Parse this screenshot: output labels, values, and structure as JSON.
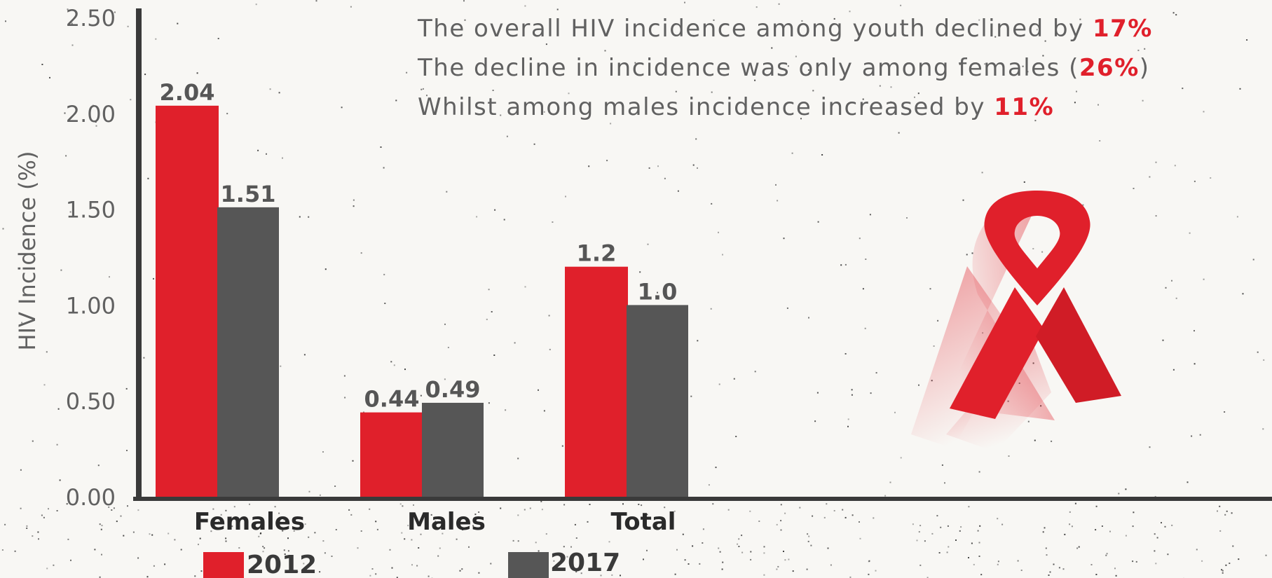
{
  "chart_data": {
    "type": "bar",
    "ylabel": "HIV Incidence (%)",
    "ylim": [
      0,
      2.5
    ],
    "yticks": [
      0.0,
      0.5,
      1.0,
      1.5,
      2.0,
      2.5
    ],
    "ytick_labels": [
      "0.00",
      "0.50",
      "1.00",
      "1.50",
      "2.00",
      "2.50"
    ],
    "categories": [
      "Females",
      "Males",
      "Total"
    ],
    "series": [
      {
        "name": "2012",
        "values": [
          2.04,
          0.44,
          1.2
        ],
        "labels": [
          "2.04",
          "0.44",
          "1.2"
        ],
        "color": "#e0202b"
      },
      {
        "name": "2017",
        "values": [
          1.51,
          0.49,
          1.0
        ],
        "labels": [
          "1.51",
          "0.49",
          "1.0"
        ],
        "color": "#565656"
      }
    ],
    "legend_position": "bottom",
    "grid": false,
    "annotations": [
      {
        "text": "The overall HIV incidence among youth declined by ",
        "highlight": "17%",
        "suffix": ""
      },
      {
        "text": "The decline in incidence was only among females (",
        "highlight": "26%",
        "suffix": ")"
      },
      {
        "text": "Whilst among males incidence increased by ",
        "highlight": "11%",
        "suffix": ""
      }
    ]
  },
  "colors": {
    "accent": "#e0202b",
    "dark": "#565656",
    "axis": "#3a3a3a",
    "background": "#f8f7f4",
    "text": "#616161"
  },
  "icons": {
    "ribbon": "awareness-ribbon-icon"
  }
}
